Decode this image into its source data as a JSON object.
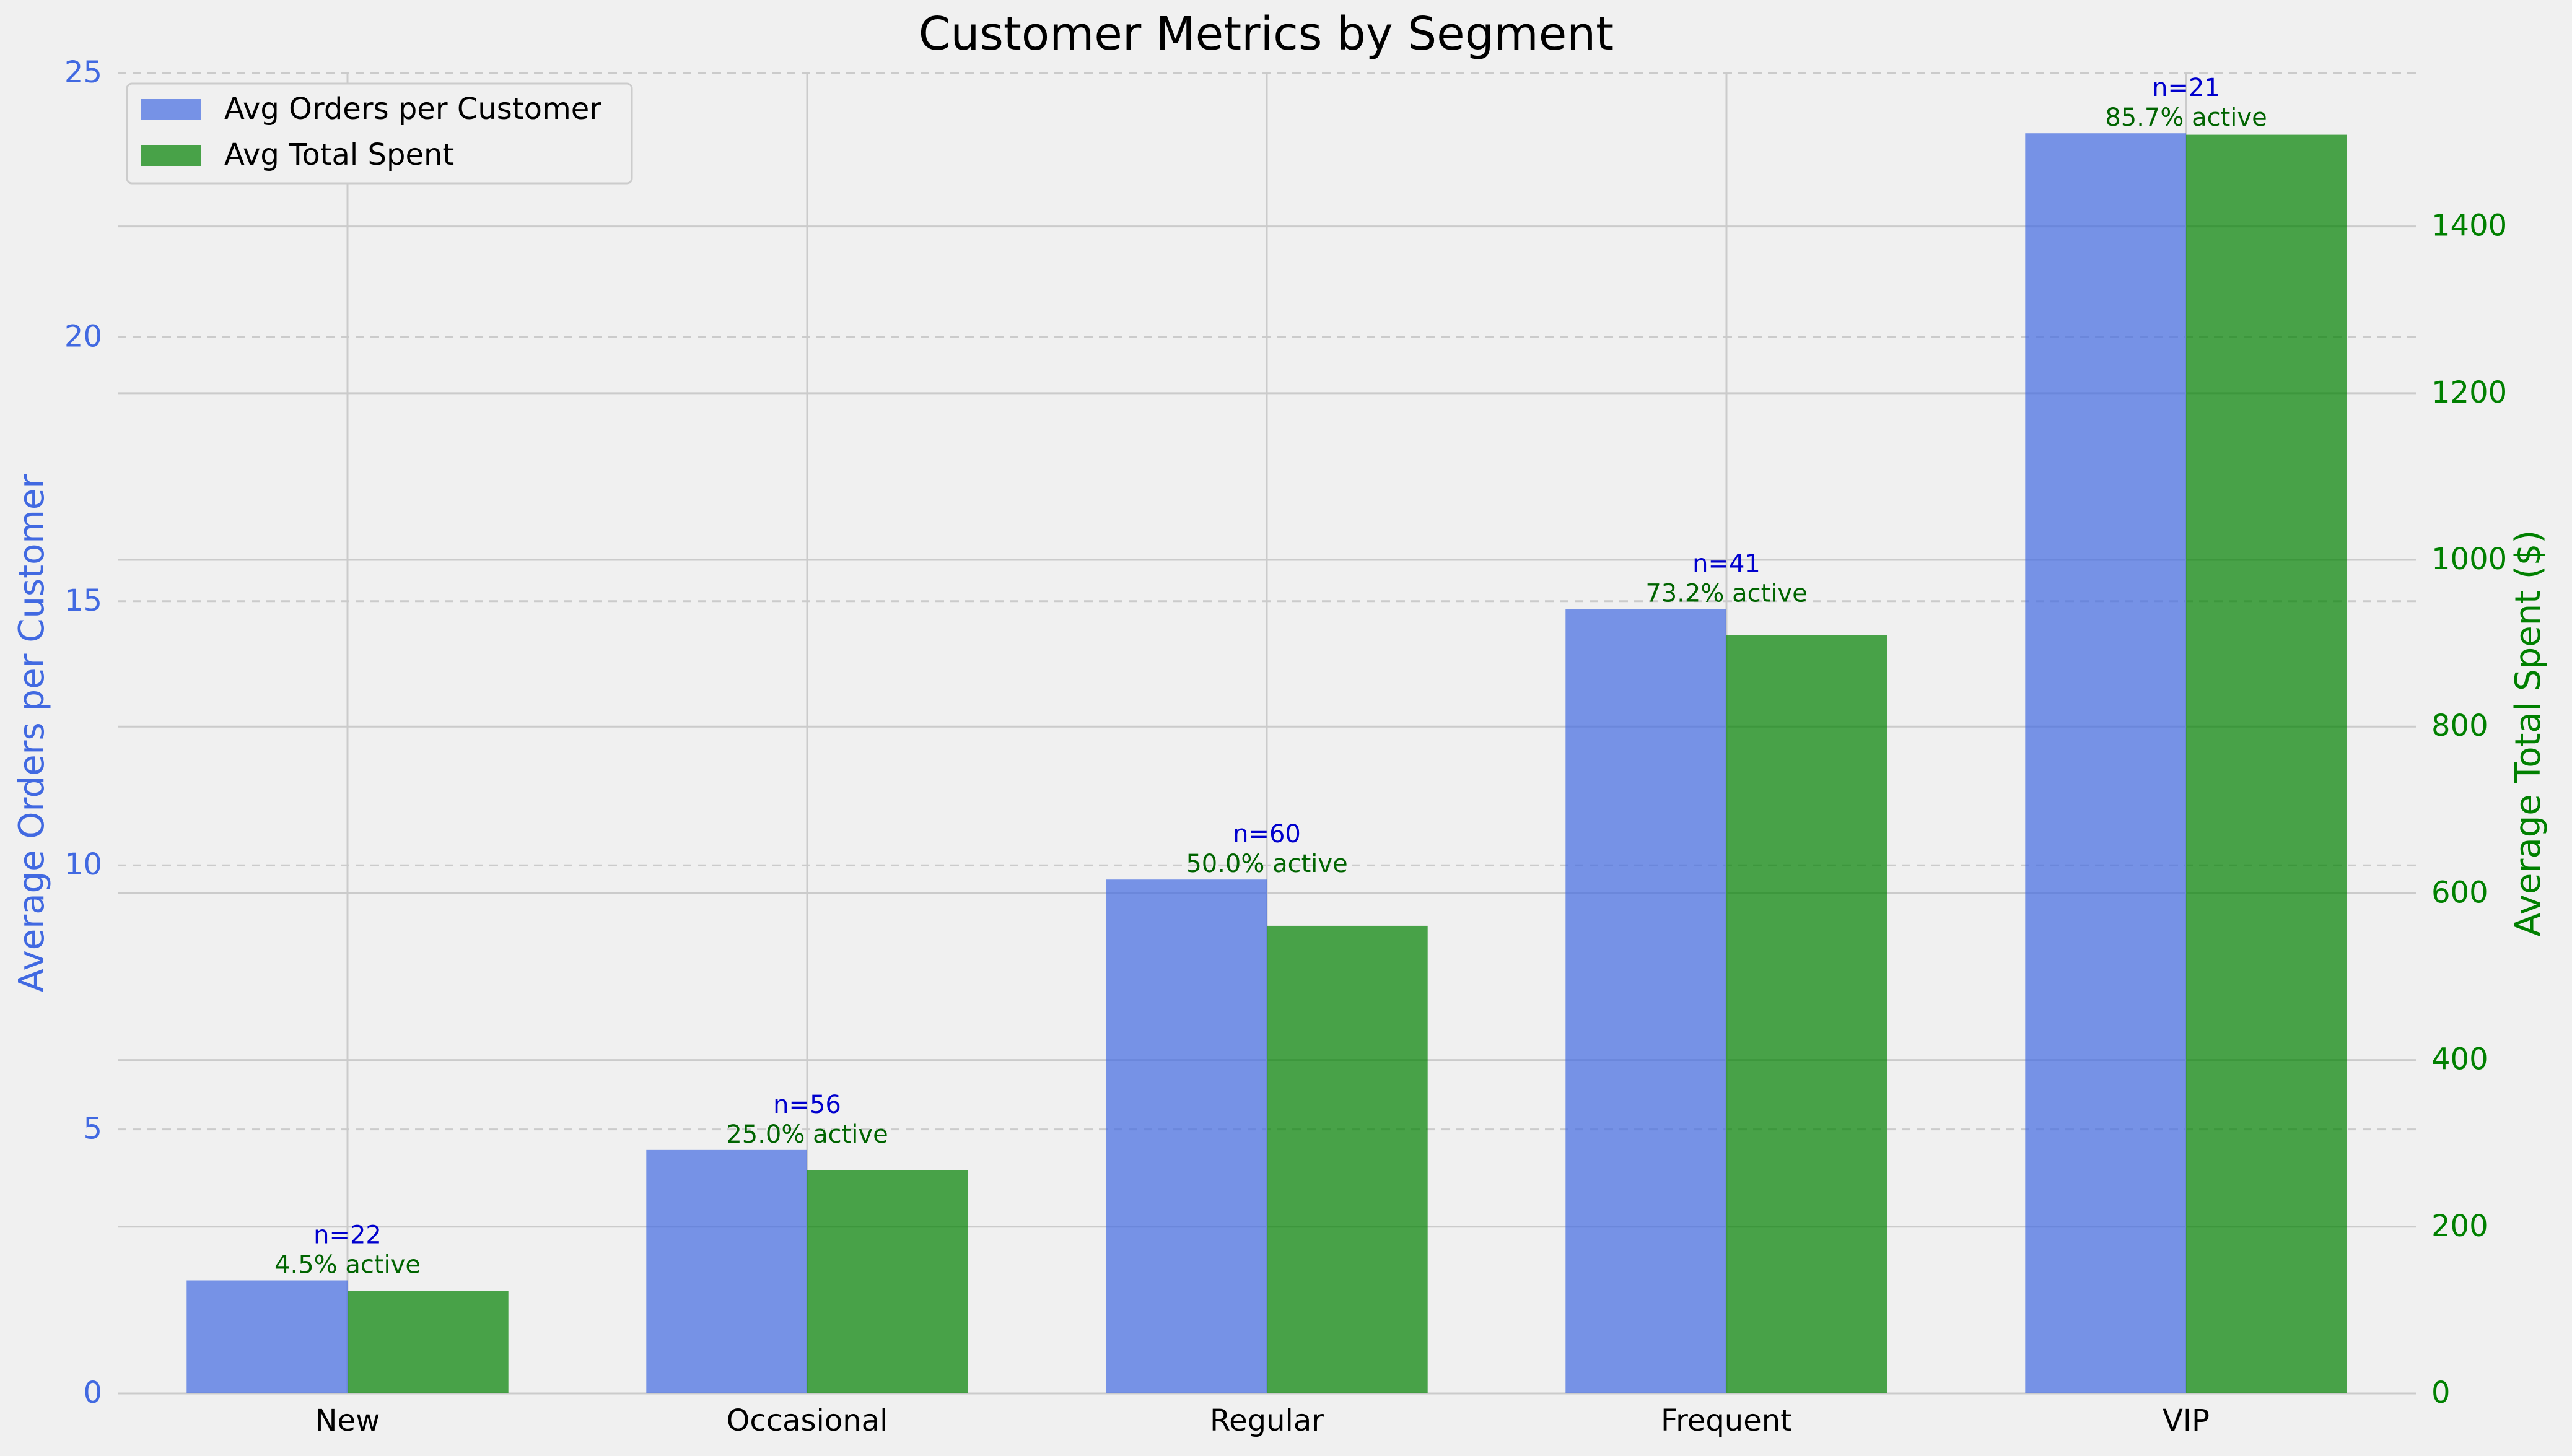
{
  "chart_data": {
    "type": "bar",
    "title": "Customer Metrics by Segment",
    "categories": [
      "New",
      "Occasional",
      "Regular",
      "Frequent",
      "VIP"
    ],
    "series": [
      {
        "name": "Avg Orders per Customer",
        "axis": "left",
        "color": "#4169e1",
        "values": [
          2.14,
          4.61,
          9.73,
          14.85,
          23.86
        ]
      },
      {
        "name": "Avg Total Spent",
        "axis": "right",
        "color": "#008000",
        "values": [
          123,
          268,
          561,
          910,
          1510
        ]
      }
    ],
    "counts": [
      "n=22",
      "n=56",
      "n=60",
      "n=41",
      "n=21"
    ],
    "active_labels": [
      "4.5% active",
      "25.0% active",
      "50.0% active",
      "73.2% active",
      "85.7% active"
    ],
    "y_left": {
      "label": "Average Orders per Customer",
      "ylim": [
        0,
        25
      ],
      "ticks": [
        0,
        5,
        10,
        15,
        20,
        25
      ],
      "color": "#4169e1"
    },
    "y_right": {
      "label": "Average Total Spent ($)",
      "ylim": [
        0,
        1584
      ],
      "ticks": [
        0,
        200,
        400,
        600,
        800,
        1000,
        1200,
        1400
      ],
      "color": "#008000"
    },
    "count_color": "#0000cd",
    "active_color": "#006400",
    "legend": "upper-left",
    "grid": true
  }
}
